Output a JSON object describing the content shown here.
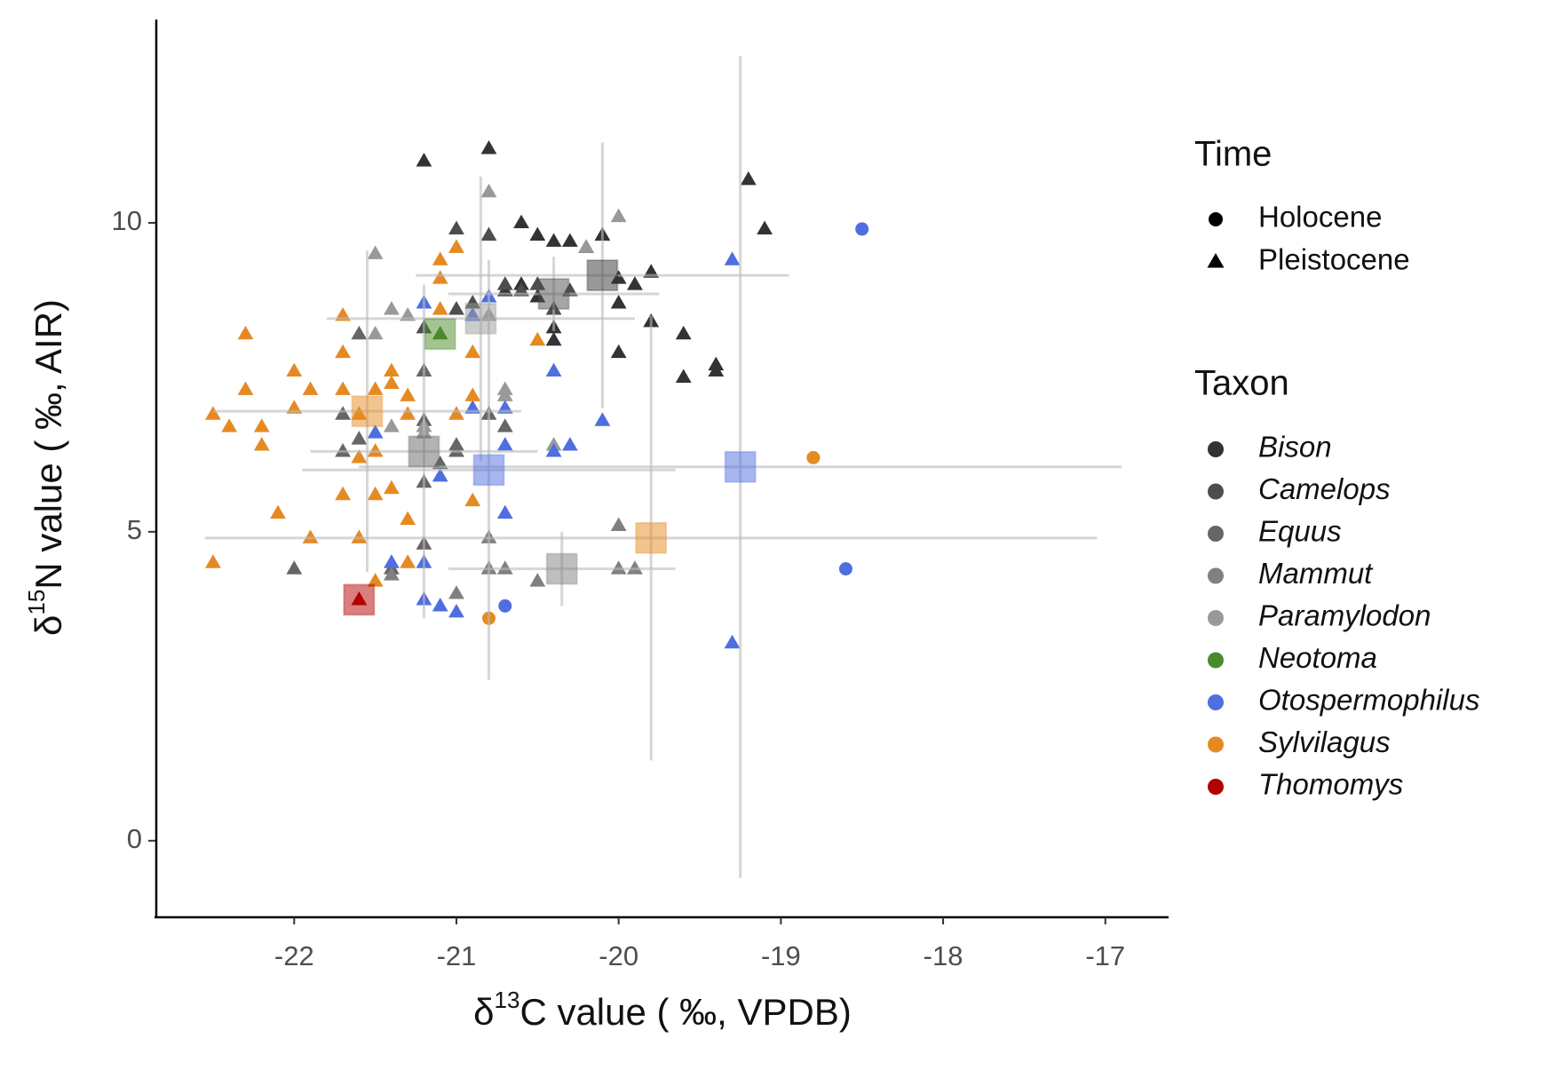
{
  "chart_data": {
    "type": "scatter",
    "xlabel": [
      "δ",
      "13",
      "C value ( ‰, VPDB)"
    ],
    "ylabel": [
      "δ",
      "15",
      "N value ( ‰, AIR)"
    ],
    "xlim": [
      -22.85,
      -16.61
    ],
    "ylim": [
      -1.21,
      13.29
    ],
    "xticks": [
      -22,
      -21,
      -20,
      -19,
      -18,
      -17
    ],
    "yticks": [
      0,
      5,
      10
    ],
    "time_title": "Time",
    "times": [
      "Holocene",
      "Pleistocene"
    ],
    "time_shapes": [
      "circle",
      "triangle"
    ],
    "taxon_title": "Taxon",
    "taxa": [
      {
        "name": "Bison",
        "color": "#333333"
      },
      {
        "name": "Camelops",
        "color": "#4d4d4d"
      },
      {
        "name": "Equus",
        "color": "#666666"
      },
      {
        "name": "Mammut",
        "color": "#808080"
      },
      {
        "name": "Paramylodon",
        "color": "#999999"
      },
      {
        "name": "Neotoma",
        "color": "#4a8a2a"
      },
      {
        "name": "Otospermophilus",
        "color": "#4f6ee0"
      },
      {
        "name": "Sylvilagus",
        "color": "#e58a22"
      },
      {
        "name": "Thomomys",
        "color": "#b30000"
      }
    ],
    "groups": [
      {
        "taxon": 0,
        "time": 1,
        "x": [
          -21.2,
          -20.8,
          -19.2,
          -19.1,
          -20.6,
          -20.5,
          -20.4,
          -20.3,
          -20.2,
          -20.1,
          -20.0,
          -19.9,
          -19.8,
          -20.0,
          -20.0,
          -19.8,
          -19.6,
          -19.6,
          -19.4,
          -19.4,
          -20.7,
          -20.6,
          -20.5,
          -20.4,
          -20.4
        ],
        "y": [
          11.0,
          11.2,
          10.7,
          9.9,
          10.0,
          9.8,
          9.7,
          9.7,
          9.6,
          9.8,
          9.1,
          9.0,
          9.2,
          8.7,
          7.9,
          8.4,
          8.2,
          7.5,
          7.7,
          7.6,
          8.9,
          9.0,
          8.8,
          8.3,
          8.1
        ],
        "mean_x": -20.1,
        "mean_y": 9.15,
        "sd_x": 1.15,
        "sd_y": 2.15
      },
      {
        "taxon": 1,
        "time": 1,
        "x": [
          -21.0,
          -20.8,
          -20.7,
          -20.6,
          -20.5,
          -20.4,
          -20.3,
          -21.2,
          -20.9,
          -21.0
        ],
        "y": [
          9.9,
          9.8,
          9.0,
          8.9,
          9.0,
          8.6,
          8.9,
          8.3,
          8.7,
          8.6
        ],
        "mean_x": -20.4,
        "mean_y": 8.85,
        "sd_x": 0.65,
        "sd_y": 0.6
      },
      {
        "taxon": 2,
        "time": 1,
        "x": [
          -21.7,
          -21.6,
          -21.2,
          -21.2,
          -21.0,
          -21.1,
          -21.2,
          -22.0,
          -21.4,
          -21.6,
          -21.2,
          -21.0,
          -20.8,
          -20.7,
          -21.7
        ],
        "y": [
          6.3,
          6.5,
          6.8,
          5.8,
          6.3,
          6.1,
          4.8,
          4.4,
          4.4,
          8.2,
          7.6,
          6.4,
          6.9,
          6.7,
          6.9
        ],
        "mean_x": -21.2,
        "mean_y": 6.3,
        "sd_x": 0.7,
        "sd_y": 2.7
      },
      {
        "taxon": 3,
        "time": 1,
        "x": [
          -20.8,
          -20.8,
          -20.7,
          -20.5,
          -20.0,
          -19.9,
          -20.0,
          -21.0,
          -21.4
        ],
        "y": [
          4.9,
          4.4,
          4.4,
          4.2,
          4.4,
          4.4,
          5.1,
          4.0,
          4.3
        ],
        "mean_x": -20.35,
        "mean_y": 4.4,
        "sd_x": 0.7,
        "sd_y": 0.6
      },
      {
        "taxon": 4,
        "time": 1,
        "x": [
          -21.5,
          -20.8,
          -20.0,
          -20.2,
          -21.4,
          -21.3,
          -20.9,
          -20.8,
          -21.5,
          -20.7,
          -20.7,
          -20.4,
          -21.2,
          -21.4,
          -21.2
        ],
        "y": [
          9.5,
          10.5,
          10.1,
          9.6,
          8.6,
          8.5,
          8.5,
          8.5,
          8.2,
          7.3,
          7.2,
          6.4,
          6.7,
          6.7,
          6.6
        ],
        "mean_x": -20.85,
        "mean_y": 8.45,
        "sd_x": 0.95,
        "sd_y": 2.3
      },
      {
        "taxon": 5,
        "time": 1,
        "x": [
          -21.1
        ],
        "y": [
          8.2
        ],
        "mean_x": -21.1,
        "mean_y": 8.2,
        "sd_x": null,
        "sd_y": null
      },
      {
        "taxon": 6,
        "time": 1,
        "x": [
          -19.3,
          -19.3,
          -20.4,
          -20.1,
          -20.3,
          -20.4,
          -20.9,
          -20.7,
          -20.7,
          -20.7,
          -20.8,
          -20.9,
          -21.1,
          -21.2,
          -21.4,
          -21.2,
          -21.1,
          -21.0,
          -21.2,
          -21.5
        ],
        "y": [
          9.4,
          3.2,
          7.6,
          6.8,
          6.4,
          6.3,
          7.0,
          7.0,
          6.4,
          5.3,
          8.8,
          8.5,
          5.9,
          4.5,
          4.5,
          3.9,
          3.8,
          3.7,
          8.7,
          6.6
        ],
        "mean_x": -20.8,
        "mean_y": 6.0,
        "sd_x": 1.15,
        "sd_y": 3.4
      },
      {
        "taxon": 6,
        "time": 0,
        "x": [
          -18.5,
          -18.6,
          -20.7
        ],
        "y": [
          9.9,
          4.4,
          3.8
        ],
        "mean_x": -19.25,
        "mean_y": 6.05,
        "sd_x": 2.35,
        "sd_y": 6.65
      },
      {
        "taxon": 7,
        "time": 1,
        "x": [
          -22.5,
          -22.4,
          -22.3,
          -22.3,
          -22.2,
          -22.2,
          -22.0,
          -22.0,
          -21.9,
          -21.7,
          -21.7,
          -21.7,
          -21.6,
          -21.5,
          -21.4,
          -21.4,
          -21.3,
          -21.5,
          -21.3,
          -21.7,
          -21.5,
          -21.4,
          -21.3,
          -22.1,
          -21.9,
          -22.5,
          -21.6,
          -21.5,
          -21.3,
          -21.1,
          -21.1,
          -21.0,
          -21.1,
          -20.9,
          -20.9,
          -21.0,
          -20.9,
          -20.5,
          -21.6
        ],
        "y": [
          6.9,
          6.7,
          8.2,
          7.3,
          6.7,
          6.4,
          7.6,
          7.0,
          7.3,
          8.5,
          7.9,
          7.3,
          6.9,
          7.3,
          7.6,
          7.4,
          7.2,
          6.3,
          6.9,
          5.6,
          5.6,
          5.7,
          5.2,
          5.3,
          4.9,
          4.5,
          4.9,
          4.2,
          4.5,
          9.4,
          9.1,
          9.6,
          8.6,
          7.9,
          7.2,
          6.9,
          5.5,
          8.1,
          6.2
        ],
        "mean_x": -21.55,
        "mean_y": 6.95,
        "sd_x": 0.95,
        "sd_y": 2.6
      },
      {
        "taxon": 7,
        "time": 0,
        "x": [
          -18.8,
          -20.8
        ],
        "y": [
          6.2,
          3.6
        ],
        "mean_x": -19.8,
        "mean_y": 4.9,
        "sd_x": 2.75,
        "sd_y": 3.6
      },
      {
        "taxon": 8,
        "time": 1,
        "x": [
          -21.6
        ],
        "y": [
          3.9
        ],
        "mean_x": -21.6,
        "mean_y": 3.9,
        "sd_x": null,
        "sd_y": null
      }
    ]
  }
}
